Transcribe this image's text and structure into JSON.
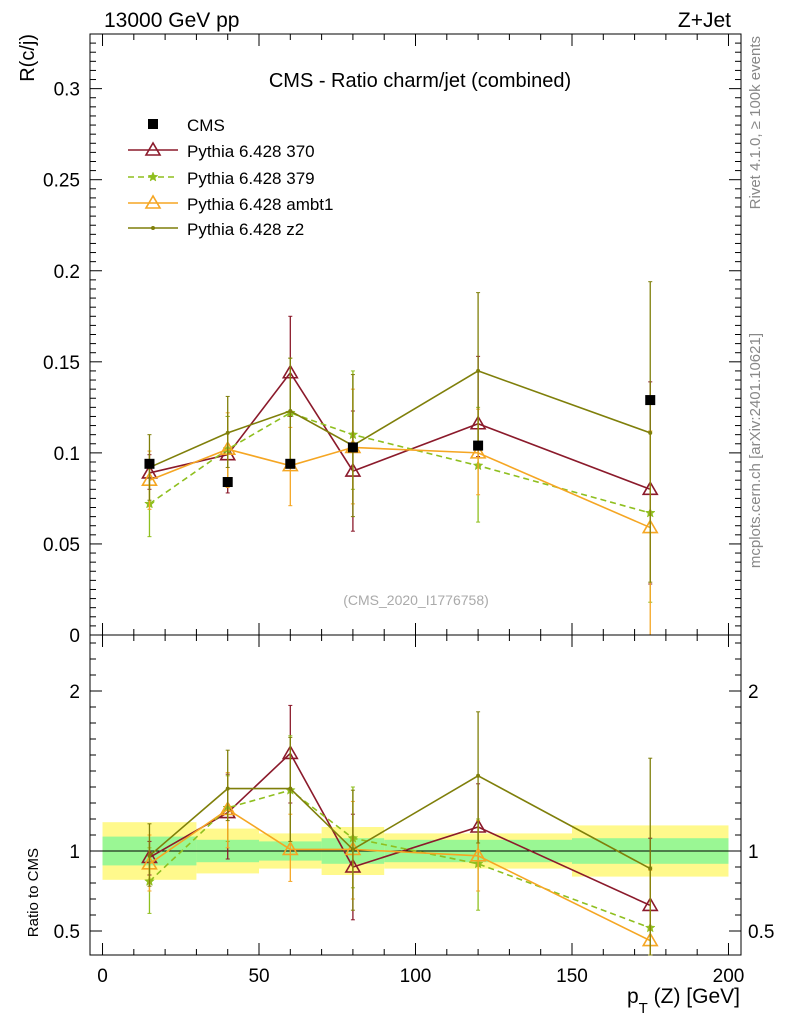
{
  "header": {
    "energy_label": "13000 GeV pp",
    "process_label": "Z+Jet",
    "side_top": "Rivet 4.1.0, ≥ 100k events",
    "side_bottom": "mcplots.cern.ch [arXiv:2401.10621]",
    "watermark": "(CMS_2020_I1776758)"
  },
  "chart_data": {
    "type": "line",
    "title": "CMS - Ratio charm/jet (combined)",
    "xlabel": "p_T (Z) [GeV]",
    "ylabel": "R(c/j)",
    "ratio_ylabel": "Ratio to CMS",
    "xlim": [
      -4,
      204
    ],
    "ylim": [
      0,
      0.33
    ],
    "ratio_ylim": [
      0.35,
      2.35
    ],
    "x_ticks": [
      0,
      50,
      100,
      150,
      200
    ],
    "x_tick_labels": [
      "0",
      "50",
      "100",
      "150",
      "200"
    ],
    "y_ticks": [
      0,
      0.05,
      0.1,
      0.15,
      0.2,
      0.25,
      0.3
    ],
    "y_tick_labels": [
      "0",
      "0.05",
      "0.1",
      "0.15",
      "0.2",
      "0.25",
      "0.3"
    ],
    "ratio_y_ticks": [
      0.5,
      1,
      2
    ],
    "ratio_y_tick_labels": [
      "0.5",
      "1",
      "2"
    ],
    "bins": [
      {
        "lo": 0,
        "hi": 30,
        "x": 15
      },
      {
        "lo": 30,
        "hi": 50,
        "x": 40
      },
      {
        "lo": 50,
        "hi": 70,
        "x": 60
      },
      {
        "lo": 70,
        "hi": 90,
        "x": 80
      },
      {
        "lo": 90,
        "hi": 150,
        "x": 120
      },
      {
        "lo": 150,
        "hi": 200,
        "x": 175
      }
    ],
    "data": {
      "name": "CMS",
      "values": [
        0.094,
        0.084,
        0.094,
        0.103,
        0.104,
        0.129
      ],
      "ratio_stat_lo": [
        0.91,
        0.93,
        0.94,
        0.92,
        0.93,
        0.92
      ],
      "ratio_stat_hi": [
        1.09,
        1.07,
        1.06,
        1.08,
        1.07,
        1.08
      ],
      "ratio_tot_lo": [
        0.82,
        0.86,
        0.89,
        0.85,
        0.89,
        0.84
      ],
      "ratio_tot_hi": [
        1.18,
        1.14,
        1.11,
        1.15,
        1.11,
        1.16
      ]
    },
    "series": [
      {
        "name": "Pythia 6.428 370",
        "color": "#8b1a2b",
        "marker": "triangle",
        "dashed": false,
        "values": [
          0.089,
          0.099,
          0.144,
          0.09,
          0.116,
          0.08
        ],
        "err_lo": [
          0.08,
          0.078,
          0.12,
          0.057,
          0.098,
          0.028
        ],
        "err_hi": [
          0.099,
          0.12,
          0.175,
          0.123,
          0.153,
          0.139
        ],
        "ratio": [
          0.96,
          1.24,
          1.61,
          0.9,
          1.15,
          0.66
        ],
        "ratio_lo": [
          0.85,
          0.95,
          1.3,
          0.57,
          0.92,
          0.22
        ],
        "ratio_hi": [
          1.06,
          1.48,
          1.91,
          1.23,
          1.42,
          1.08
        ]
      },
      {
        "name": "Pythia 6.428 379",
        "color": "#8fbf1f",
        "marker": "star",
        "dashed": true,
        "values": [
          0.072,
          0.102,
          0.122,
          0.11,
          0.093,
          0.067
        ],
        "err_lo": [
          0.054,
          0.085,
          0.092,
          0.08,
          0.062,
          0.018
        ],
        "err_hi": [
          0.092,
          0.12,
          0.152,
          0.145,
          0.125,
          0.112
        ],
        "ratio": [
          0.81,
          1.27,
          1.38,
          1.08,
          0.92,
          0.52
        ],
        "ratio_lo": [
          0.61,
          1.06,
          1.04,
          0.77,
          0.63,
          0.14
        ],
        "ratio_hi": [
          1.02,
          1.47,
          1.72,
          1.4,
          1.2,
          0.9
        ]
      },
      {
        "name": "Pythia 6.428 ambt1",
        "color": "#f5a623",
        "marker": "triangle",
        "dashed": false,
        "values": [
          0.085,
          0.102,
          0.093,
          0.103,
          0.1,
          0.059
        ],
        "err_lo": [
          0.069,
          0.081,
          0.071,
          0.072,
          0.077,
          0.0
        ],
        "err_hi": [
          0.101,
          0.122,
          0.114,
          0.135,
          0.124,
          0.112
        ],
        "ratio": [
          0.92,
          1.26,
          1.01,
          1.01,
          0.97,
          0.44
        ],
        "ratio_lo": [
          0.75,
          1.02,
          0.81,
          0.7,
          0.75,
          0.0
        ],
        "ratio_hi": [
          1.1,
          1.49,
          1.23,
          1.31,
          1.19,
          0.88
        ]
      },
      {
        "name": "Pythia 6.428 z2",
        "color": "#7f7f0a",
        "marker": "dot",
        "dashed": false,
        "values": [
          0.092,
          0.111,
          0.123,
          0.104,
          0.145,
          0.111
        ],
        "err_lo": [
          0.074,
          0.092,
          0.094,
          0.065,
          0.103,
          0.029
        ],
        "err_hi": [
          0.11,
          0.131,
          0.152,
          0.143,
          0.188,
          0.194
        ],
        "ratio": [
          0.97,
          1.39,
          1.39,
          1.01,
          1.47,
          0.89
        ],
        "ratio_lo": [
          0.78,
          1.19,
          1.06,
          0.63,
          1.05,
          0.22
        ],
        "ratio_hi": [
          1.17,
          1.63,
          1.71,
          1.38,
          1.87,
          1.58
        ]
      }
    ]
  }
}
